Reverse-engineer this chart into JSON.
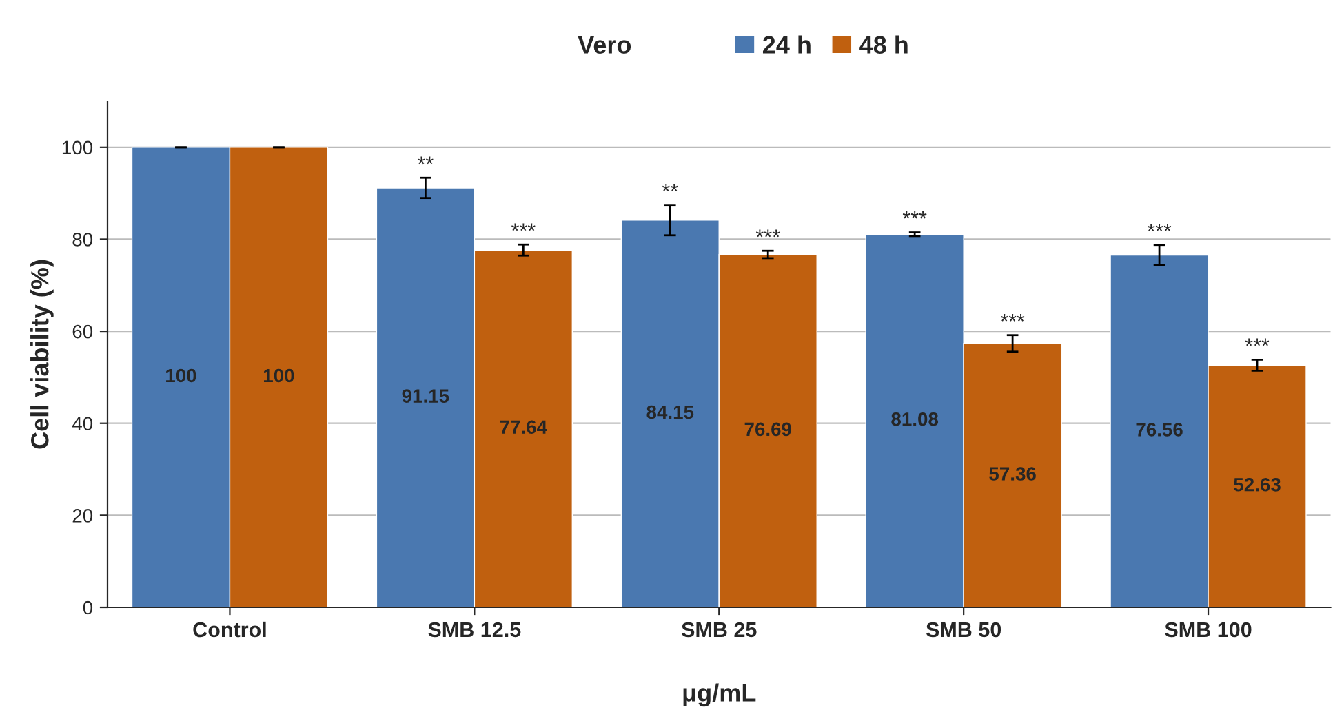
{
  "chart_data": {
    "type": "bar",
    "title": "Vero",
    "xlabel": "μg/mL",
    "ylabel": "Cell viability (%)",
    "categories": [
      "Control",
      "SMB 12.5",
      "SMB 25",
      "SMB 50",
      "SMB 100"
    ],
    "series": [
      {
        "name": "24 h",
        "color": "#4a78b0",
        "values": [
          100,
          91.15,
          84.15,
          81.08,
          76.56
        ],
        "errors": [
          0,
          2.2,
          3.3,
          0.4,
          2.2
        ]
      },
      {
        "name": "48 h",
        "color": "#c0600f",
        "values": [
          100,
          77.64,
          76.69,
          57.36,
          52.63
        ],
        "errors": [
          0,
          1.2,
          0.8,
          1.8,
          1.2
        ]
      }
    ],
    "annotations": [
      "**",
      "***",
      "**",
      "***",
      "***",
      "***",
      "***",
      "***"
    ],
    "ylim": [
      0,
      110
    ],
    "yticks": [
      0,
      20,
      40,
      60,
      80,
      100
    ],
    "grid": "y",
    "legend": "top",
    "data_labels": true
  }
}
